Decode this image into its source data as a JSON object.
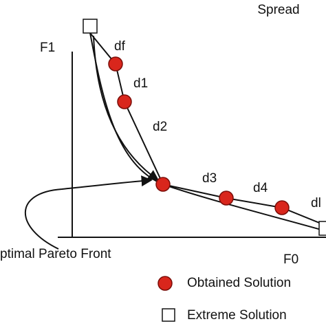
{
  "title": "Spread",
  "axes": {
    "y_label": "F1",
    "x_label": "F0"
  },
  "distances": [
    "df",
    "d1",
    "d2",
    "d3",
    "d4",
    "dl"
  ],
  "curve_label": "ptimal Pareto Front",
  "legend": [
    {
      "label": "Obtained Solution"
    },
    {
      "label": "Extreme Solution"
    }
  ]
}
